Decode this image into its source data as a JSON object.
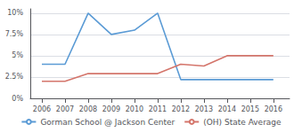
{
  "chart_data": {
    "type": "line",
    "x": [
      2006,
      2007,
      2008,
      2009,
      2010,
      2011,
      2012,
      2013,
      2014,
      2015,
      2016
    ],
    "series": [
      {
        "name": "Gorman School @ Jackson Center",
        "color": "#5b9bd5",
        "values": [
          4.0,
          4.0,
          10.0,
          7.5,
          8.0,
          10.0,
          2.2,
          2.2,
          2.2,
          2.2,
          2.2
        ]
      },
      {
        "name": "(OH) State Average",
        "color": "#d4756b",
        "values": [
          2.0,
          2.0,
          2.9,
          2.9,
          2.9,
          2.9,
          4.0,
          3.8,
          5.0,
          5.0,
          5.0
        ]
      }
    ],
    "xlim": [
      2005.5,
      2016.7
    ],
    "xticks": [
      2006,
      2007,
      2008,
      2009,
      2010,
      2011,
      2012,
      2013,
      2014,
      2015,
      2016
    ],
    "ylim": [
      0,
      10.5
    ],
    "yticks": [
      {
        "value": 0,
        "label": "0%"
      },
      {
        "value": 2.5,
        "label": "2.5%"
      },
      {
        "value": 5.0,
        "label": "5%"
      },
      {
        "value": 7.5,
        "label": "7.5%"
      },
      {
        "value": 10.0,
        "label": "10%"
      }
    ],
    "grid": true,
    "legend": "bottom"
  }
}
